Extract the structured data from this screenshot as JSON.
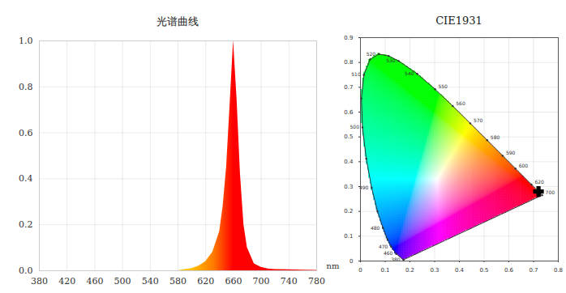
{
  "chart_data": [
    {
      "type": "area",
      "title": "光谱曲线",
      "x_label": "nm",
      "x": [
        380,
        400,
        420,
        440,
        460,
        480,
        500,
        520,
        540,
        560,
        580,
        590,
        600,
        610,
        620,
        630,
        640,
        645,
        650,
        655,
        660,
        665,
        670,
        675,
        680,
        690,
        700,
        710,
        720,
        740,
        760,
        780
      ],
      "values": [
        0,
        0,
        0,
        0,
        0,
        0,
        0,
        0,
        0,
        0,
        0,
        0.005,
        0.01,
        0.02,
        0.04,
        0.08,
        0.17,
        0.28,
        0.45,
        0.72,
        1.0,
        0.75,
        0.42,
        0.2,
        0.1,
        0.03,
        0.015,
        0.008,
        0.005,
        0.004,
        0.003,
        0.002
      ],
      "color": "#ff0000",
      "xlim": [
        380,
        780
      ],
      "xticks": [
        380,
        420,
        460,
        500,
        540,
        580,
        620,
        660,
        700,
        740,
        780
      ],
      "ylim": [
        0,
        1
      ],
      "yticks": [
        {
          "value": 0,
          "label": "0.0"
        },
        0.2,
        0.4,
        0.6,
        0.8,
        {
          "value": 1,
          "label": "1.0"
        }
      ],
      "grid": true
    },
    {
      "type": "line",
      "title": "CIE1931",
      "series": [
        {
          "type": "line",
          "color": "#333333",
          "x": [
            0.1741,
            0.144,
            0.1241,
            0.1096,
            0.0913,
            0.0687,
            0.0454,
            0.0235,
            0.0082,
            0.0039,
            0.0139,
            0.0389,
            0.0743,
            0.1142,
            0.1547,
            0.2296,
            0.3016,
            0.3731,
            0.4441,
            0.5125,
            0.5752,
            0.627,
            0.6915,
            0.7347
          ],
          "values": [
            0.005,
            0.0297,
            0.0578,
            0.0868,
            0.1327,
            0.2007,
            0.295,
            0.4127,
            0.5384,
            0.6548,
            0.7502,
            0.812,
            0.8338,
            0.8262,
            0.8059,
            0.7543,
            0.6923,
            0.6245,
            0.5547,
            0.4866,
            0.4242,
            0.3725,
            0.3083,
            0.2653
          ],
          "labels": [
            "380",
            "460",
            "470",
            null,
            "480",
            null,
            "490",
            null,
            "500",
            null,
            "510",
            null,
            "520",
            null,
            "530",
            "540",
            "550",
            "560",
            "570",
            "580",
            "590",
            "600",
            "620",
            "700"
          ]
        },
        {
          "type": "scatter",
          "color": "#000000",
          "marker": "cross",
          "x": [
            0.72
          ],
          "values": [
            0.28
          ]
        }
      ],
      "xlim": [
        0,
        0.8
      ],
      "xticks": [
        0,
        0.1,
        0.2,
        0.3,
        0.4,
        0.5,
        0.6,
        0.7,
        0.8
      ],
      "ylim": [
        0,
        0.9
      ],
      "yticks": [
        0,
        0.1,
        0.2,
        0.3,
        0.4,
        0.5,
        0.6,
        0.7,
        0.8,
        0.9
      ],
      "grid": true
    }
  ]
}
